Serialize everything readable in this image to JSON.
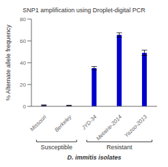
{
  "chart_data": {
    "type": "bar",
    "title": "SNP1 amplification using Droplet-digital PCR",
    "xlabel": "D. immitis isolates",
    "ylabel": "% Alternate allele frequency",
    "categories": [
      "Missouri",
      "Berkeley",
      "JYD-34",
      "Metairie-2014",
      "Yazoo-2013"
    ],
    "values": [
      1.0,
      0.8,
      35.0,
      65.5,
      49.0
    ],
    "errors": [
      0.3,
      0.2,
      1.5,
      2.0,
      2.5
    ],
    "color": "#0000CC",
    "ylim": [
      0,
      80
    ],
    "yticks": [
      0,
      20,
      40,
      60,
      80
    ],
    "grid": false,
    "annotations": [
      {
        "text": "Susceptible",
        "categories": [
          "Missouri",
          "Berkeley"
        ]
      },
      {
        "text": "Resistant",
        "categories": [
          "JYD-34",
          "Metairie-2014",
          "Yazoo-2013"
        ]
      }
    ]
  }
}
